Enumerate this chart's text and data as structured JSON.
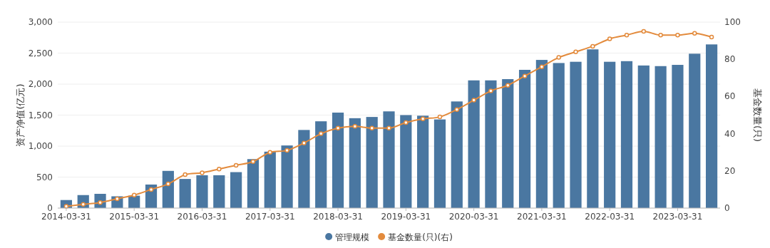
{
  "chart_data": {
    "type": "bar",
    "ylabel": "资产净值(亿元)",
    "y2label": "基金数量(只)",
    "categories": [
      "2014-03-31",
      null,
      null,
      null,
      "2015-03-31",
      null,
      null,
      null,
      "2016-03-31",
      null,
      null,
      null,
      "2017-03-31",
      null,
      null,
      null,
      "2018-03-31",
      null,
      null,
      null,
      "2019-03-31",
      null,
      null,
      null,
      "2020-03-31",
      null,
      null,
      null,
      "2021-03-31",
      null,
      null,
      null,
      "2022-03-31",
      null,
      null,
      null,
      "2023-03-31",
      null,
      null
    ],
    "series": [
      {
        "name": "管理规模",
        "color": "#4a77a1",
        "values": [
          130,
          210,
          230,
          190,
          200,
          380,
          600,
          470,
          530,
          530,
          580,
          790,
          910,
          1010,
          1260,
          1400,
          1540,
          1450,
          1470,
          1560,
          1500,
          1490,
          1430,
          1720,
          2060,
          2060,
          2080,
          2230,
          2390,
          2340,
          2360,
          2560,
          2360,
          2370,
          2300,
          2290,
          2310,
          2490,
          2640
        ]
      },
      {
        "name": "基金数量(只)(右)",
        "type": "line",
        "axis": "y2",
        "color": "#e38b3d",
        "marker": "circle",
        "values": [
          1,
          2,
          3,
          5,
          7,
          10,
          13,
          18,
          19,
          21,
          23,
          25,
          30,
          31,
          35,
          40,
          43,
          44,
          43,
          43,
          46,
          48,
          49,
          53,
          58,
          63,
          66,
          71,
          76,
          81,
          84,
          87,
          91,
          93,
          95,
          93,
          93,
          94,
          92
        ]
      }
    ],
    "ylim": [
      0,
      3000
    ],
    "yticks": [
      0,
      500,
      {
        "value": 1000,
        "label": "1,000"
      },
      {
        "value": 1500,
        "label": "1,500"
      },
      {
        "value": 2000,
        "label": "2,000"
      },
      {
        "value": 2500,
        "label": "2,500"
      },
      {
        "value": 3000,
        "label": "3,000"
      }
    ],
    "y2lim": [
      0,
      100
    ],
    "y2ticks": [
      0,
      20,
      40,
      60,
      80,
      100
    ],
    "grid": "y",
    "legend": "bottom"
  }
}
